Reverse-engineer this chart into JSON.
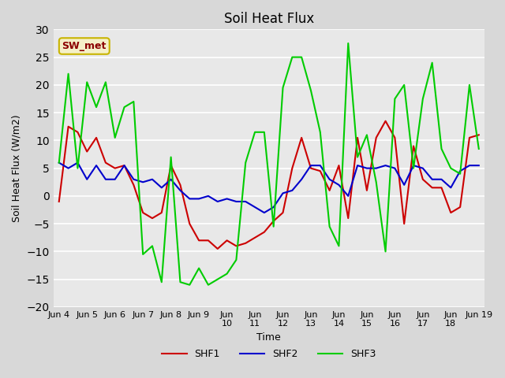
{
  "title": "Soil Heat Flux",
  "ylabel": "Soil Heat Flux (W/m2)",
  "xlabel": "Time",
  "ylim": [
    -20,
    30
  ],
  "bg_color": "#d8d8d8",
  "plot_bg_color": "#e8e8e8",
  "grid_color": "#ffffff",
  "annotation_label": "SW_met",
  "annotation_color": "#8b0000",
  "annotation_bg": "#f5f0c8",
  "annotation_border": "#c8b400",
  "xtick_labels": [
    "Jun 4",
    "Jun 5",
    "Jun 6",
    "Jun 7",
    "Jun 8",
    "Jun 9",
    "Jun\n10",
    "Jun\n11",
    "Jun\n12",
    "Jun\n13",
    "Jun\n14",
    "Jun\n15",
    "Jun\n16",
    "Jun\n17",
    "Jun\n18",
    "Jun 19"
  ],
  "shf1_color": "#cc0000",
  "shf2_color": "#0000cc",
  "shf3_color": "#00cc00",
  "shf1_lw": 1.5,
  "shf2_lw": 1.5,
  "shf3_lw": 1.5,
  "shf1": [
    -1,
    12.5,
    11.5,
    8,
    10.5,
    6,
    5,
    5.5,
    2,
    -3,
    -4,
    -3,
    5.5,
    2,
    -5,
    -8,
    -8,
    -9.5,
    -8,
    -9,
    -8.5,
    -7.5,
    -6.5,
    -4.5,
    -3,
    5,
    10.5,
    5,
    4.5,
    1,
    5.5,
    -4,
    10.5,
    1,
    10.5,
    13.5,
    10.5,
    -5,
    9,
    3,
    1.5,
    1.5,
    -3,
    -2,
    10.5,
    11
  ],
  "shf2": [
    6,
    5,
    6,
    3,
    5.5,
    3,
    3,
    5.5,
    3,
    2.5,
    3,
    1.5,
    3,
    1,
    -0.5,
    -0.5,
    0,
    -1,
    -0.5,
    -1,
    -1,
    -2,
    -3,
    -2,
    0.5,
    1,
    3,
    5.5,
    5.5,
    3,
    2,
    0,
    5.5,
    5,
    5,
    5.5,
    5,
    2,
    5.5,
    5,
    3,
    3,
    1.5,
    4.5,
    5.5,
    5.5
  ],
  "shf3": [
    6,
    22,
    5,
    20.5,
    16,
    20.5,
    10.5,
    16,
    17,
    -10.5,
    -9,
    -15.5,
    7,
    -15.5,
    -16,
    -13,
    -16,
    -15,
    -14,
    -11.5,
    6,
    11.5,
    11.5,
    -5.5,
    19.5,
    25,
    25,
    19,
    11.5,
    -5.5,
    -9,
    27.5,
    7,
    11,
    2.5,
    -10,
    17.5,
    20,
    5,
    17.5,
    24,
    8.5,
    5,
    4,
    20,
    8.5
  ]
}
